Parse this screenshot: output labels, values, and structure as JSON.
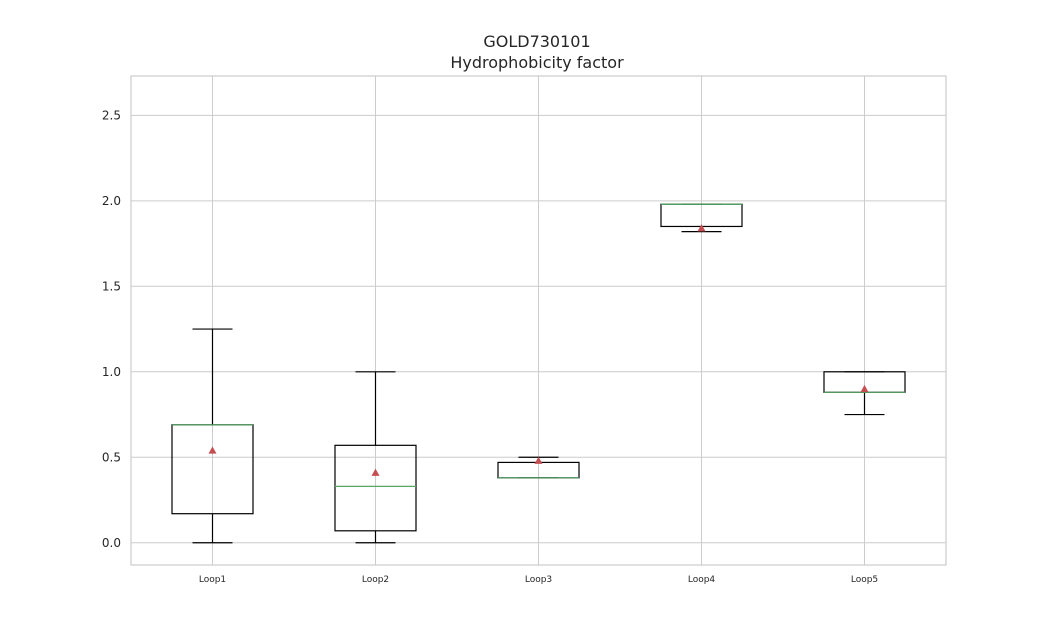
{
  "chart_data": {
    "type": "box",
    "title": "GOLD730101",
    "subtitle": "Hydrophobicity factor",
    "xlabel": "",
    "ylabel": "",
    "ylim": [
      -0.13,
      2.73
    ],
    "yticks": [
      "0.0",
      "0.5",
      "1.0",
      "1.5",
      "2.0",
      "2.5"
    ],
    "grid": true,
    "categories": [
      "Loop1",
      "Loop2",
      "Loop3",
      "Loop4",
      "Loop5"
    ],
    "boxes": [
      {
        "category": "Loop1",
        "whisker_low": 0.0,
        "q1": 0.17,
        "median": 0.69,
        "q3": 0.69,
        "whisker_high": 1.25,
        "mean": 0.54
      },
      {
        "category": "Loop2",
        "whisker_low": 0.0,
        "q1": 0.07,
        "median": 0.33,
        "q3": 0.57,
        "whisker_high": 1.0,
        "mean": 0.41
      },
      {
        "category": "Loop3",
        "whisker_low": 0.38,
        "q1": 0.38,
        "median": 0.38,
        "q3": 0.47,
        "whisker_high": 0.5,
        "mean": 0.48
      },
      {
        "category": "Loop4",
        "whisker_low": 1.82,
        "q1": 1.85,
        "median": 1.98,
        "q3": 1.98,
        "whisker_high": 1.98,
        "mean": 1.84
      },
      {
        "category": "Loop5",
        "whisker_low": 0.75,
        "q1": 0.88,
        "median": 0.88,
        "q3": 1.0,
        "whisker_high": 1.0,
        "mean": 0.9
      }
    ],
    "colors": {
      "box": "#000000",
      "median": "#55a868",
      "mean": "#c44e52",
      "grid": "#cccccc",
      "frame": "#cccccc"
    }
  }
}
